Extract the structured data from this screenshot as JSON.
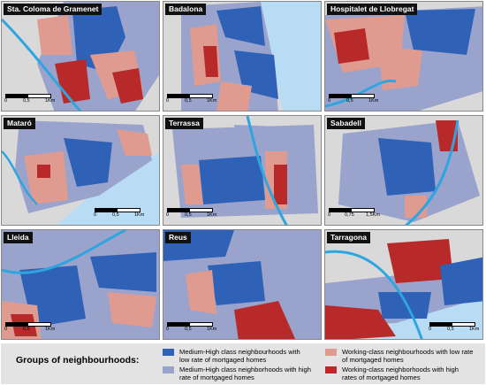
{
  "colors": {
    "medium_high_low": "#2f62b7",
    "medium_high_high": "#9aa3cc",
    "working_low": "#df9b90",
    "working_high": "#b82a2a",
    "water": "#2fa5e0",
    "sea": "#b9dcf5",
    "background": "#dcdcdc"
  },
  "panels": [
    {
      "name": "Sta. Coloma de Gramenet",
      "scale": [
        "0",
        "0,5",
        "1Km"
      ]
    },
    {
      "name": "Badalona",
      "scale": [
        "0",
        "0,5",
        "1Km"
      ]
    },
    {
      "name": "Hospitalet de Llobregat",
      "scale": [
        "0",
        "0,5",
        "1Km"
      ]
    },
    {
      "name": "Mataró",
      "scale": [
        "0",
        "0,5",
        "1Km"
      ]
    },
    {
      "name": "Terrassa",
      "scale": [
        "0",
        "0,5",
        "1Km"
      ]
    },
    {
      "name": "Sabadell",
      "scale": [
        "0",
        "0,75",
        "1,5Km"
      ]
    },
    {
      "name": "Lleida",
      "scale": [
        "0",
        "0,5",
        "1Km"
      ]
    },
    {
      "name": "Reus",
      "scale": [
        "0",
        "0,5",
        "1Km"
      ]
    },
    {
      "name": "Tarragona",
      "scale": [
        "0",
        "0,5",
        "1Km"
      ]
    }
  ],
  "legend": {
    "title": "Groups of neighbourhoods:",
    "items": [
      {
        "label": "Medium-High class neighbourhoods with low rate of mortgaged homes",
        "color": "#2f62b7"
      },
      {
        "label": "Medium-High class neighborhoods with high rate of mortgaged homes",
        "color": "#9aa3cc"
      },
      {
        "label": "Working-class neighbourhoods with low rate of mortgaged homes",
        "color": "#df9b90"
      },
      {
        "label": "Working-class neighborhoods with high rates of mortgaged homes",
        "color": "#b82a2a"
      }
    ]
  }
}
